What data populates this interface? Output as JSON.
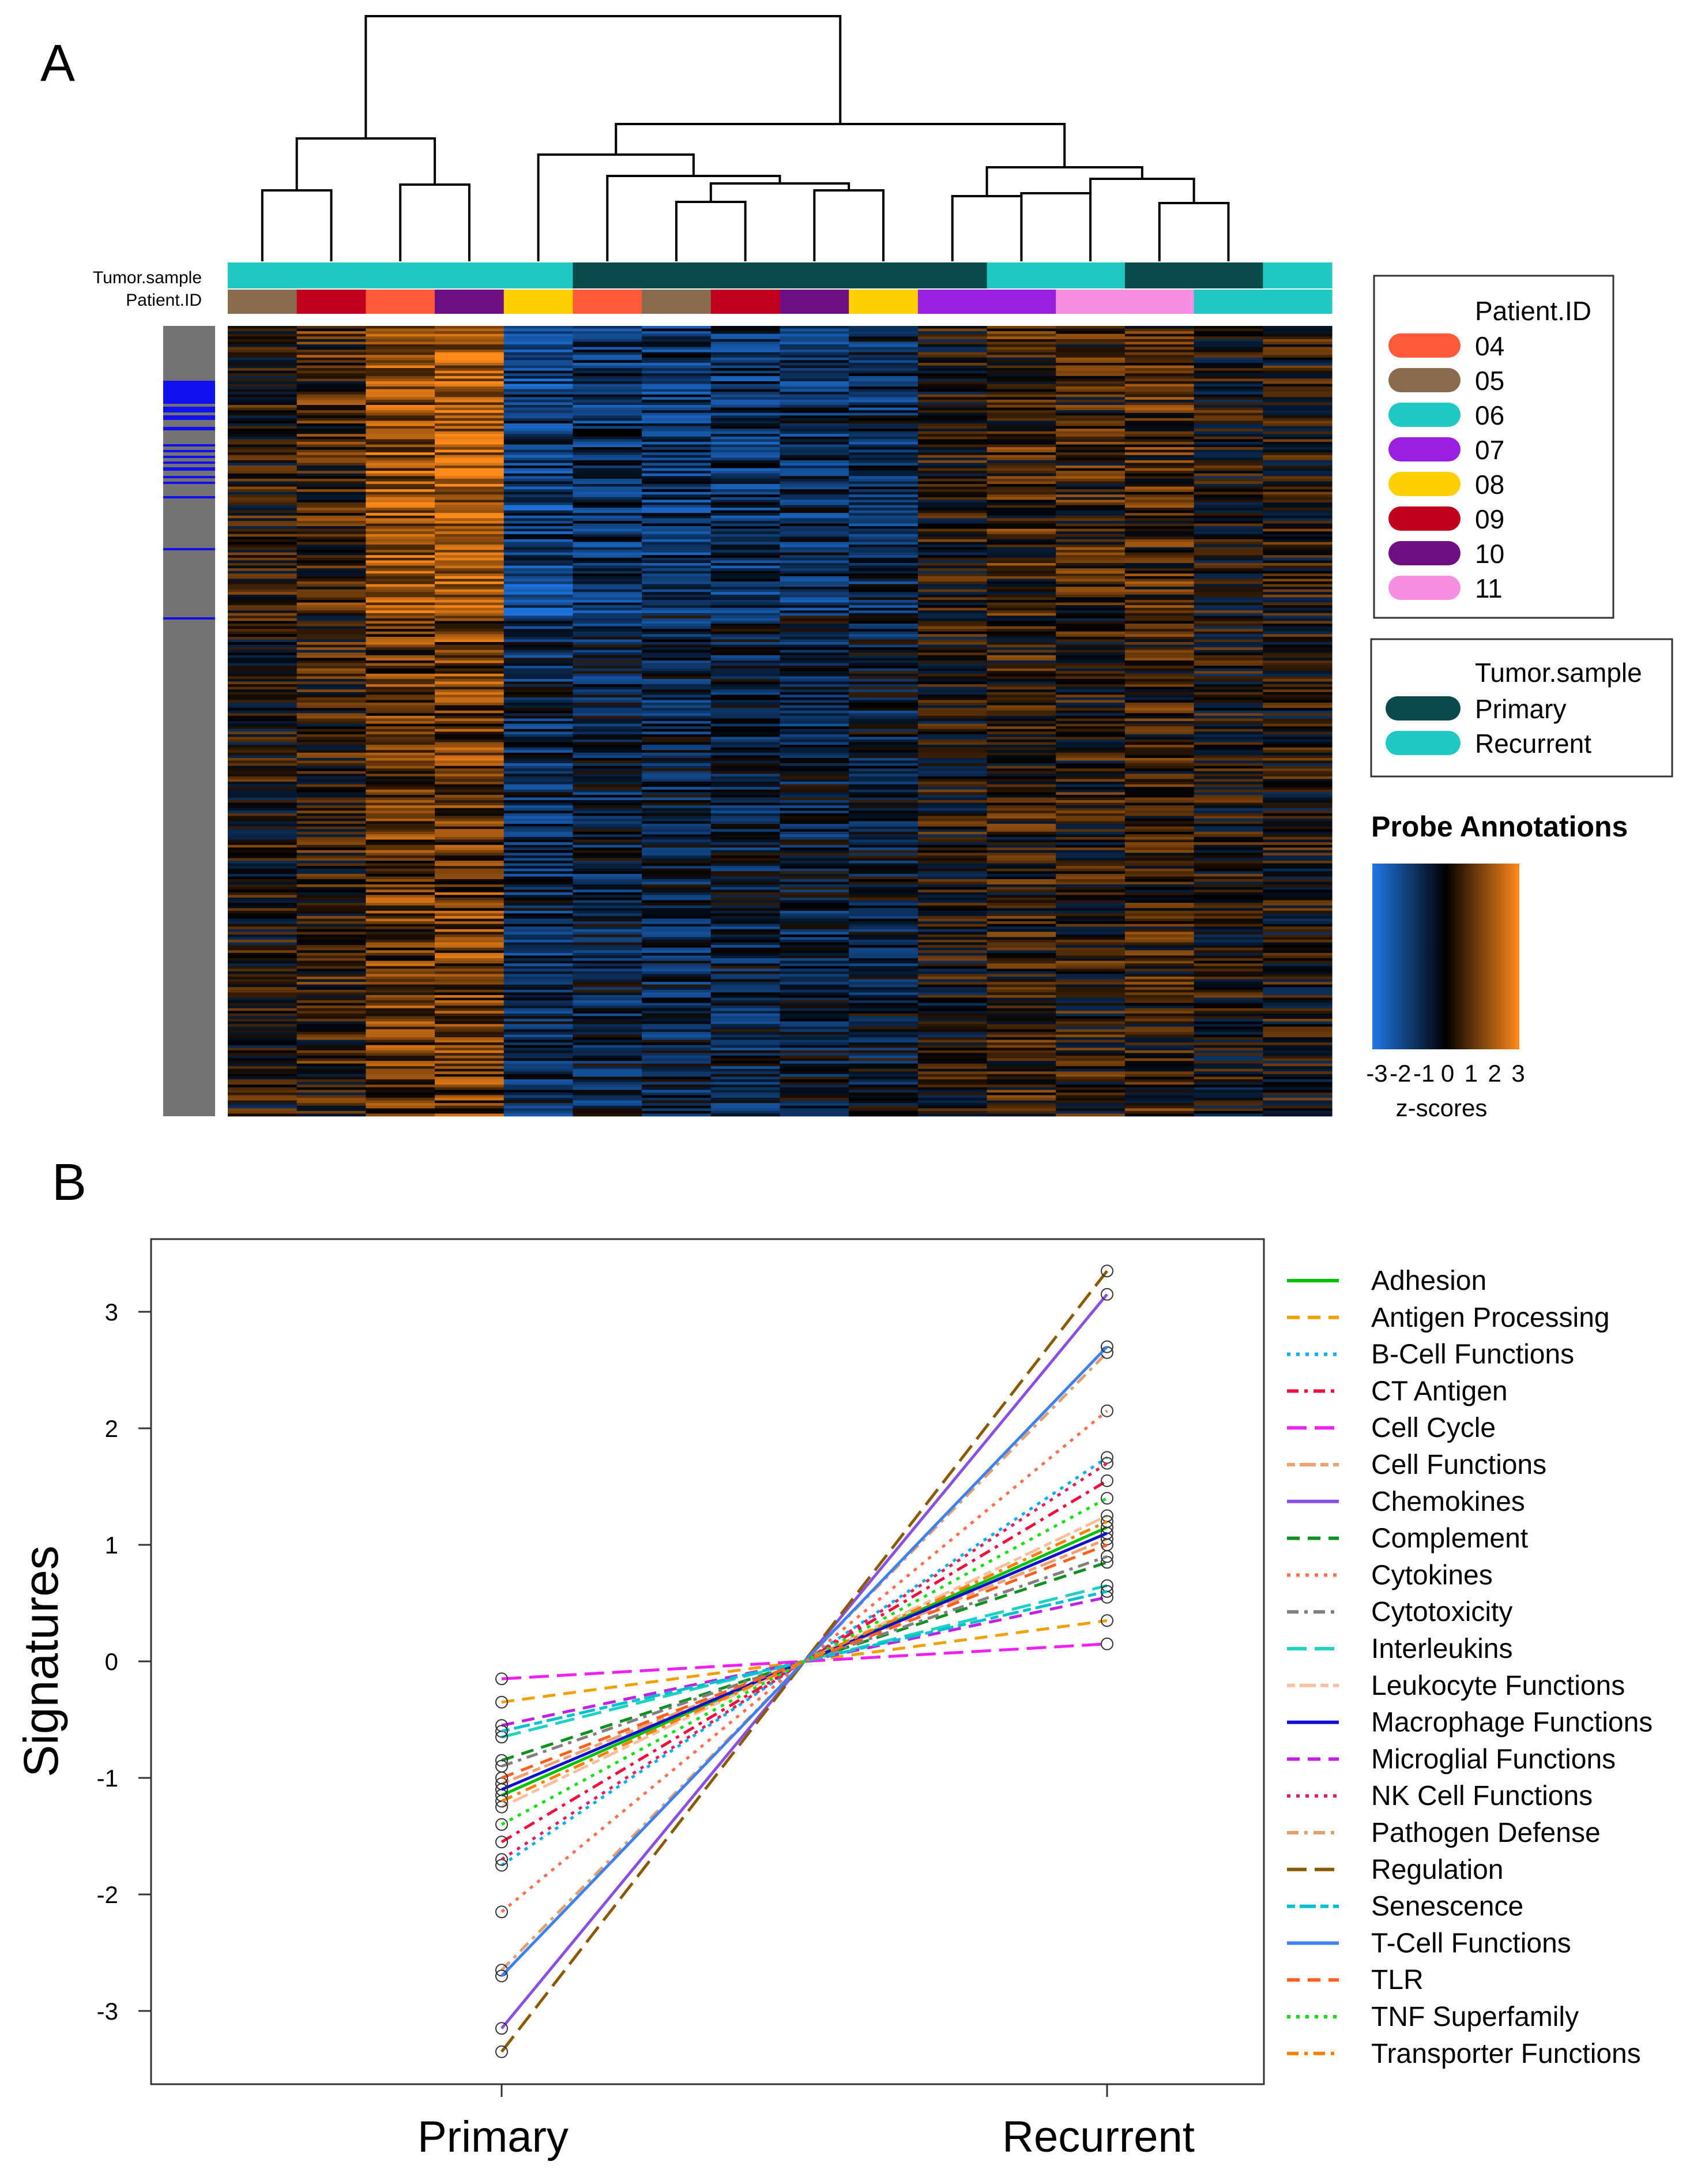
{
  "panel_a": {
    "label": "A",
    "annotation_row_labels": {
      "tumor": "Tumor.sample",
      "patient": "Patient.ID"
    },
    "legend_patient": {
      "title": "Patient.ID",
      "entries": [
        {
          "label": "04",
          "color": "#ff5a3c"
        },
        {
          "label": "05",
          "color": "#8b6b4e"
        },
        {
          "label": "06",
          "color": "#20c8c4"
        },
        {
          "label": "07",
          "color": "#9b1fe0"
        },
        {
          "label": "08",
          "color": "#ffd000"
        },
        {
          "label": "09",
          "color": "#c0001c"
        },
        {
          "label": "10",
          "color": "#6e0f84"
        },
        {
          "label": "11",
          "color": "#f78fe0"
        }
      ]
    },
    "legend_tumor": {
      "title": "Tumor.sample",
      "entries": [
        {
          "label": "Primary",
          "color": "#0b4a4a"
        },
        {
          "label": "Recurrent",
          "color": "#20c8c4"
        }
      ]
    },
    "colorbar": {
      "title": "Probe Annotations",
      "tick_labels": [
        "-3",
        "-2",
        "-1",
        "0",
        "1",
        "2",
        "3"
      ],
      "xlabel": "z-scores",
      "low_color": "#1f78e6",
      "mid_color": "#000000",
      "high_color": "#ff8a1a"
    },
    "columns": [
      {
        "tumor": "Recurrent",
        "patient": "05",
        "profile": 0.15
      },
      {
        "tumor": "Recurrent",
        "patient": "09",
        "profile": 0.35
      },
      {
        "tumor": "Recurrent",
        "patient": "04",
        "profile": 0.85
      },
      {
        "tumor": "Recurrent",
        "patient": "10",
        "profile": 1.0
      },
      {
        "tumor": "Recurrent",
        "patient": "08",
        "profile": -0.7
      },
      {
        "tumor": "Primary",
        "patient": "04",
        "profile": -0.55
      },
      {
        "tumor": "Primary",
        "patient": "05",
        "profile": -0.6
      },
      {
        "tumor": "Primary",
        "patient": "09",
        "profile": -0.55
      },
      {
        "tumor": "Primary",
        "patient": "10",
        "profile": -0.5
      },
      {
        "tumor": "Primary",
        "patient": "08",
        "profile": -0.45
      },
      {
        "tumor": "Primary",
        "patient": "07",
        "profile": 0.1
      },
      {
        "tumor": "Recurrent",
        "patient": "07",
        "profile": 0.3
      },
      {
        "tumor": "Recurrent",
        "patient": "11",
        "profile": 0.25
      },
      {
        "tumor": "Primary",
        "patient": "11",
        "profile": 0.35
      },
      {
        "tumor": "Primary",
        "patient": "06",
        "profile": 0.05
      },
      {
        "tumor": "Recurrent",
        "patient": "06",
        "profile": 0.1
      }
    ]
  },
  "chart_data": {
    "type": "line",
    "label": "B",
    "x": [
      "Primary",
      "Recurrent"
    ],
    "ylabel": "Signatures",
    "xlabel": "",
    "ylim": [
      -3.6,
      3.6
    ],
    "yticks": [
      -3,
      -2,
      -1,
      0,
      1,
      2,
      3
    ],
    "grid": false,
    "legend_placement": "right",
    "series": [
      {
        "name": "Adhesion",
        "values": [
          -1.15,
          1.15
        ],
        "color": "#00c000",
        "dash": "solid"
      },
      {
        "name": "Antigen Processing",
        "values": [
          -0.35,
          0.35
        ],
        "color": "#f0a000",
        "dash": "dash"
      },
      {
        "name": "B-Cell Functions",
        "values": [
          -1.75,
          1.75
        ],
        "color": "#00b0f0",
        "dash": "dot"
      },
      {
        "name": "CT Antigen",
        "values": [
          -1.55,
          1.55
        ],
        "color": "#f01040",
        "dash": "dashdot"
      },
      {
        "name": "Cell Cycle",
        "values": [
          -0.15,
          0.15
        ],
        "color": "#f020f0",
        "dash": "longdash"
      },
      {
        "name": "Cell Functions",
        "values": [
          -1.05,
          1.05
        ],
        "color": "#f0a070",
        "dash": "twodash"
      },
      {
        "name": "Chemokines",
        "values": [
          -3.15,
          3.15
        ],
        "color": "#8a50e0",
        "dash": "solid"
      },
      {
        "name": "Complement",
        "values": [
          -0.85,
          0.85
        ],
        "color": "#109020",
        "dash": "dash"
      },
      {
        "name": "Cytokines",
        "values": [
          -2.15,
          2.15
        ],
        "color": "#ff7050",
        "dash": "dot"
      },
      {
        "name": "Cytotoxicity",
        "values": [
          -0.9,
          0.9
        ],
        "color": "#808080",
        "dash": "dashdot"
      },
      {
        "name": "Interleukins",
        "values": [
          -0.65,
          0.65
        ],
        "color": "#20d0c0",
        "dash": "longdash"
      },
      {
        "name": "Leukocyte Functions",
        "values": [
          -1.25,
          1.25
        ],
        "color": "#f8c0a0",
        "dash": "twodash"
      },
      {
        "name": "Macrophage Functions",
        "values": [
          -1.1,
          1.1
        ],
        "color": "#1010d0",
        "dash": "solid"
      },
      {
        "name": "Microglial Functions",
        "values": [
          -0.55,
          0.55
        ],
        "color": "#c020e0",
        "dash": "dash"
      },
      {
        "name": "NK Cell Functions",
        "values": [
          -1.7,
          1.7
        ],
        "color": "#e02060",
        "dash": "dot"
      },
      {
        "name": "Pathogen Defense",
        "values": [
          -2.65,
          2.65
        ],
        "color": "#e0a070",
        "dash": "dashdot"
      },
      {
        "name": "Regulation",
        "values": [
          -3.35,
          3.35
        ],
        "color": "#8b5a00",
        "dash": "longdash"
      },
      {
        "name": "Senescence",
        "values": [
          -0.6,
          0.6
        ],
        "color": "#00c0d0",
        "dash": "twodash"
      },
      {
        "name": "T-Cell Functions",
        "values": [
          -2.7,
          2.7
        ],
        "color": "#4080f0",
        "dash": "solid"
      },
      {
        "name": "TLR",
        "values": [
          -1.0,
          1.0
        ],
        "color": "#ff6020",
        "dash": "dash"
      },
      {
        "name": "TNF Superfamily",
        "values": [
          -1.4,
          1.4
        ],
        "color": "#10e010",
        "dash": "dot"
      },
      {
        "name": "Transporter Functions",
        "values": [
          -1.2,
          1.2
        ],
        "color": "#ff8000",
        "dash": "dashdot"
      }
    ]
  }
}
